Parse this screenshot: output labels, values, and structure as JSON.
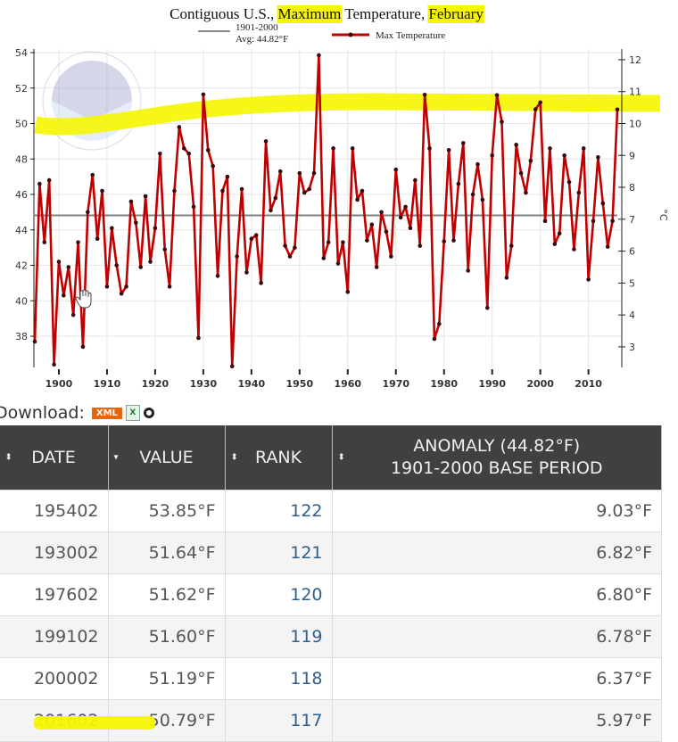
{
  "chart_data": {
    "type": "line",
    "title": {
      "prefix": "Contiguous U.S., ",
      "highlight1": "Maximum",
      "middle": " Temperature, ",
      "highlight2": "February"
    },
    "legend": [
      {
        "name": "1901-2000",
        "sub": "Avg: 44.82°F",
        "color": "#888888"
      },
      {
        "name": "Max Temperature",
        "color": "#c00000"
      }
    ],
    "legend_position": "top",
    "baseline": 44.82,
    "x": [
      1895,
      1896,
      1897,
      1898,
      1899,
      1900,
      1901,
      1902,
      1903,
      1904,
      1905,
      1906,
      1907,
      1908,
      1909,
      1910,
      1911,
      1912,
      1913,
      1914,
      1915,
      1916,
      1917,
      1918,
      1919,
      1920,
      1921,
      1922,
      1923,
      1924,
      1925,
      1926,
      1927,
      1928,
      1929,
      1930,
      1931,
      1932,
      1933,
      1934,
      1935,
      1936,
      1937,
      1938,
      1939,
      1940,
      1941,
      1942,
      1943,
      1944,
      1945,
      1946,
      1947,
      1948,
      1949,
      1950,
      1951,
      1952,
      1953,
      1954,
      1955,
      1956,
      1957,
      1958,
      1959,
      1960,
      1961,
      1962,
      1963,
      1964,
      1965,
      1966,
      1967,
      1968,
      1969,
      1970,
      1971,
      1972,
      1973,
      1974,
      1975,
      1976,
      1977,
      1978,
      1979,
      1980,
      1981,
      1982,
      1983,
      1984,
      1985,
      1986,
      1987,
      1988,
      1989,
      1990,
      1991,
      1992,
      1993,
      1994,
      1995,
      1996,
      1997,
      1998,
      1999,
      2000,
      2001,
      2002,
      2003,
      2004,
      2005,
      2006,
      2007,
      2008,
      2009,
      2010,
      2011,
      2012,
      2013,
      2014,
      2015,
      2016
    ],
    "series": [
      {
        "name": "Max Temperature",
        "values": [
          37.7,
          46.6,
          43.3,
          46.8,
          36.4,
          42.2,
          40.3,
          41.9,
          39.2,
          43.3,
          37.4,
          45.0,
          47.1,
          43.5,
          46.2,
          40.8,
          44.1,
          42.0,
          40.4,
          40.8,
          45.6,
          44.4,
          41.9,
          45.9,
          42.2,
          44.1,
          48.3,
          42.9,
          40.8,
          46.2,
          49.8,
          48.6,
          48.3,
          45.3,
          37.9,
          51.64,
          48.5,
          47.6,
          41.4,
          46.2,
          47.0,
          36.3,
          42.5,
          46.3,
          41.6,
          43.5,
          43.7,
          41.0,
          49.0,
          45.1,
          45.8,
          47.3,
          43.1,
          42.5,
          43.0,
          47.2,
          46.1,
          46.3,
          47.2,
          53.85,
          42.4,
          43.3,
          48.6,
          42.1,
          43.3,
          40.5,
          48.6,
          45.7,
          46.2,
          43.4,
          44.3,
          41.9,
          45.0,
          43.9,
          42.5,
          47.4,
          44.7,
          45.3,
          44.1,
          46.8,
          43.1,
          51.62,
          48.6,
          37.85,
          38.7,
          43.35,
          48.5,
          43.4,
          46.6,
          48.9,
          41.7,
          46.0,
          47.7,
          45.7,
          39.6,
          48.2,
          51.6,
          50.1,
          41.3,
          43.1,
          48.8,
          47.2,
          46.1,
          47.9,
          50.8,
          51.19,
          44.5,
          48.6,
          43.2,
          43.8,
          48.2,
          46.7,
          42.9,
          46.1,
          48.6,
          41.2,
          44.5,
          48.1,
          45.5,
          43.05,
          44.5,
          50.79
        ]
      }
    ],
    "xlim": [
      1895,
      2016
    ],
    "ylim": [
      36.2,
      54
    ],
    "yticks": [
      "38",
      "40",
      "42",
      "44",
      "46",
      "48",
      "50",
      "52",
      "54"
    ],
    "xticks": [
      "1900",
      "1910",
      "1920",
      "1930",
      "1940",
      "1950",
      "1960",
      "1970",
      "1980",
      "1990",
      "2000",
      "2010"
    ],
    "y2ticks": [
      "3",
      "4",
      "5",
      "6",
      "7",
      "8",
      "9",
      "10",
      "11",
      "12"
    ],
    "y2label": "°C",
    "grid": true,
    "colors": {
      "line": "#c00000",
      "baseline": "#808080",
      "highlight": "#f5f500"
    }
  },
  "download": {
    "label": "Download:",
    "xml": "XML",
    "xls": "X"
  },
  "table": {
    "headers": [
      {
        "label": "DATE",
        "sort": "⬍"
      },
      {
        "label": "VALUE",
        "sort": "▾"
      },
      {
        "label": "RANK",
        "sort": "⬍"
      },
      {
        "label": "ANOMALY (44.82°F)",
        "label2": "1901-2000 BASE PERIOD",
        "sort": "⬍"
      }
    ],
    "rows": [
      {
        "date": "195402",
        "value": "53.85°F",
        "rank": "122",
        "anomaly": "9.03°F"
      },
      {
        "date": "193002",
        "value": "51.64°F",
        "rank": "121",
        "anomaly": "6.82°F"
      },
      {
        "date": "197602",
        "value": "51.62°F",
        "rank": "120",
        "anomaly": "6.80°F"
      },
      {
        "date": "199102",
        "value": "51.60°F",
        "rank": "119",
        "anomaly": "6.78°F"
      },
      {
        "date": "200002",
        "value": "51.19°F",
        "rank": "118",
        "anomaly": "6.37°F"
      },
      {
        "date": "201602",
        "value": "50.79°F",
        "rank": "117",
        "anomaly": "5.97°F"
      }
    ]
  }
}
